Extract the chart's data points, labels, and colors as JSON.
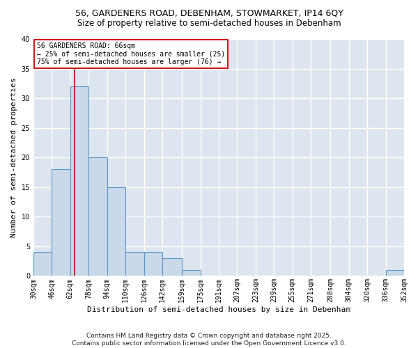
{
  "title_line1": "56, GARDENERS ROAD, DEBENHAM, STOWMARKET, IP14 6QY",
  "title_line2": "Size of property relative to semi-detached houses in Debenham",
  "xlabel": "Distribution of semi-detached houses by size in Debenham",
  "ylabel": "Number of semi-detached properties",
  "footnote": "Contains HM Land Registry data © Crown copyright and database right 2025.\nContains public sector information licensed under the Open Government Licence v3.0.",
  "bins": [
    30,
    46,
    62,
    78,
    94,
    110,
    126,
    142,
    159,
    175,
    191,
    207,
    223,
    239,
    255,
    271,
    288,
    304,
    320,
    336,
    352
  ],
  "bin_labels": [
    "30sqm",
    "46sqm",
    "62sqm",
    "78sqm",
    "94sqm",
    "110sqm",
    "126sqm",
    "142sqm",
    "159sqm",
    "175sqm",
    "191sqm",
    "207sqm",
    "223sqm",
    "239sqm",
    "255sqm",
    "271sqm",
    "288sqm",
    "304sqm",
    "320sqm",
    "336sqm",
    "352sqm"
  ],
  "values": [
    4,
    18,
    32,
    20,
    15,
    4,
    4,
    3,
    1,
    0,
    0,
    0,
    0,
    0,
    0,
    0,
    0,
    0,
    0,
    1
  ],
  "bar_color": "#c9d9ea",
  "bar_edge_color": "#5a96c8",
  "subject_value": 66,
  "vline_x": 66,
  "vline_color": "#cc0000",
  "annotation_text": "56 GARDENERS ROAD: 66sqm\n← 25% of semi-detached houses are smaller (25)\n75% of semi-detached houses are larger (76) →",
  "annotation_box_facecolor": "#ffffff",
  "annotation_box_edgecolor": "#cc0000",
  "ylim": [
    0,
    40
  ],
  "yticks": [
    0,
    5,
    10,
    15,
    20,
    25,
    30,
    35,
    40
  ],
  "fig_bg": "#ffffff",
  "ax_bg": "#dde6f0",
  "grid_color": "#ffffff",
  "title_fontsize": 9,
  "subtitle_fontsize": 8.5,
  "tick_fontsize": 7,
  "ylabel_fontsize": 8,
  "xlabel_fontsize": 8,
  "footnote_fontsize": 6.5
}
